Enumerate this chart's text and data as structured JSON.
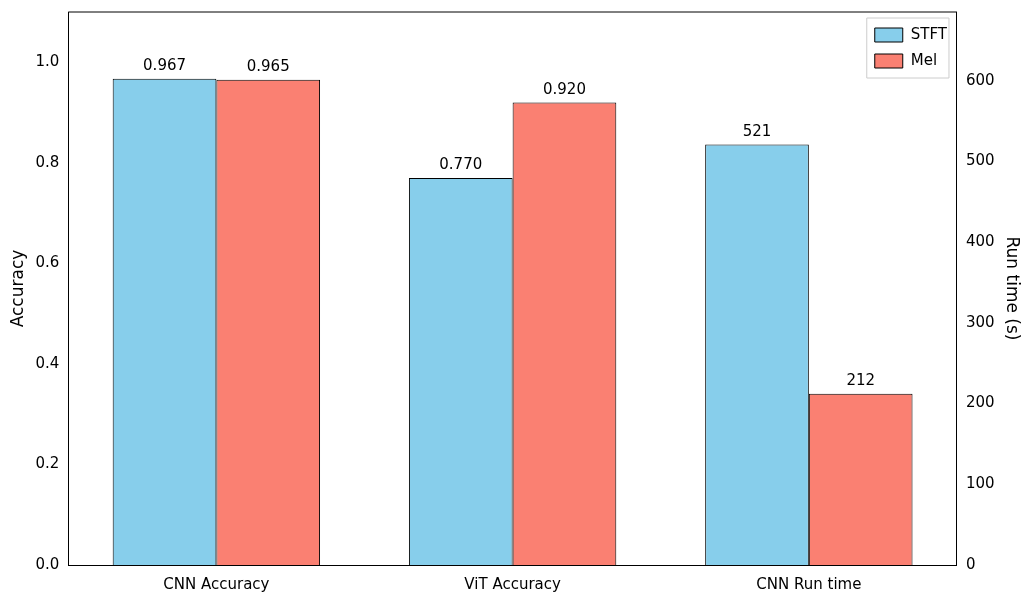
{
  "chart_data": {
    "type": "bar",
    "categories": [
      "CNN Accuracy",
      "ViT Accuracy",
      "CNN Run time"
    ],
    "ylabel": "Accuracy",
    "y2label": "Run time (s)",
    "ylim": [
      0,
      1.1
    ],
    "yticks": [
      {
        "value": 0,
        "label": "0.0"
      },
      {
        "value": 0.2,
        "label": "0.2"
      },
      {
        "value": 0.4,
        "label": "0.4"
      },
      {
        "value": 0.6,
        "label": "0.6"
      },
      {
        "value": 0.8,
        "label": "0.8"
      },
      {
        "value": 1,
        "label": "1.0"
      }
    ],
    "y2lim": [
      0,
      685
    ],
    "y2ticks": [
      0,
      100,
      200,
      300,
      400,
      500,
      600
    ],
    "series": [
      {
        "name": "STFT",
        "color": "#87ceeb",
        "values": [
          0.967,
          0.77,
          null
        ],
        "value_labels": [
          "0.967",
          "0.770",
          null
        ]
      },
      {
        "name": "Mel",
        "color": "#fa8072",
        "values": [
          0.965,
          0.92,
          null
        ],
        "value_labels": [
          "0.965",
          "0.920",
          null
        ]
      },
      {
        "color": "#87ceeb",
        "axis": "y2",
        "values": [
          null,
          null,
          521
        ],
        "value_labels": [
          null,
          null,
          "521"
        ]
      },
      {
        "color": "#fa8072",
        "axis": "y2",
        "values": [
          null,
          null,
          212
        ],
        "value_labels": [
          null,
          null,
          "212"
        ]
      }
    ],
    "legend": "top right",
    "grid": false
  }
}
